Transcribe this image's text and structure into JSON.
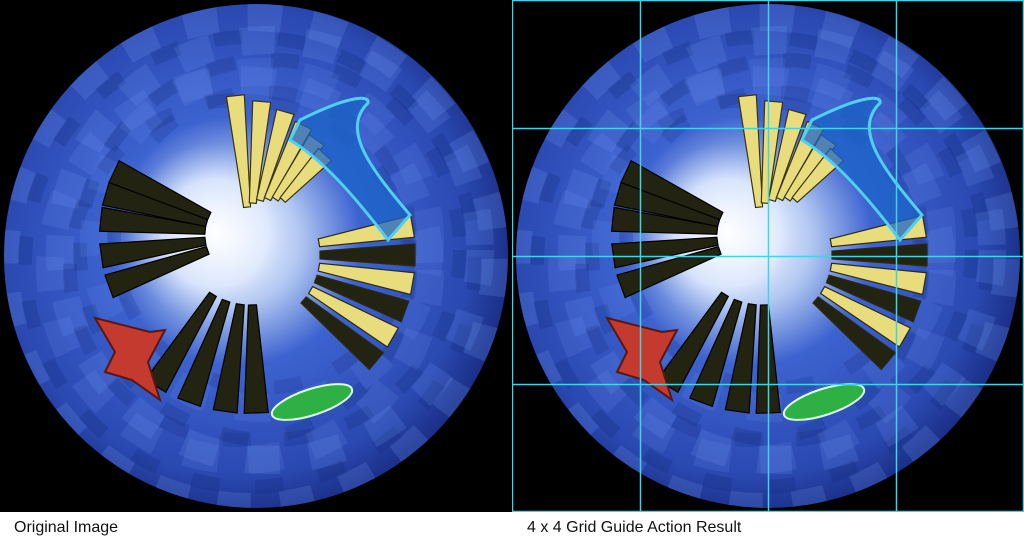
{
  "captions": {
    "left": "Original Image",
    "right": "4 x 4 Grid Guide Action Result"
  },
  "grid": {
    "rows": 4,
    "cols": 4,
    "line_color": "#3fd4e6"
  },
  "colors": {
    "background": "#000000",
    "sphere_outer": "#1a2f86",
    "sphere_mid": "#3d63d0",
    "sphere_inner": "#f3f8ff",
    "cone_yellow": "#e9dc7d",
    "cone_dark": "#232311",
    "curved_panel": "#1c64c8",
    "red_object": "#c43a2f",
    "green_object": "#2fb044"
  }
}
